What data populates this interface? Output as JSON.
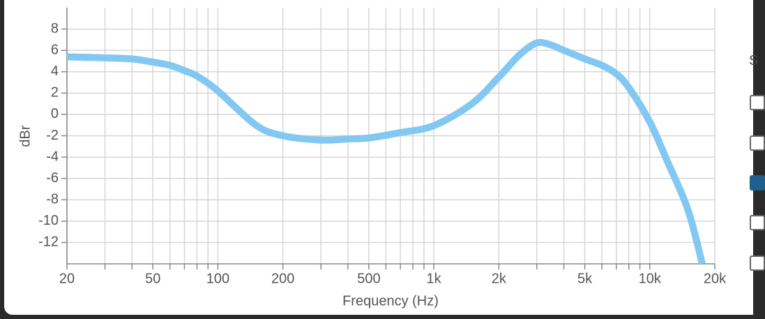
{
  "chart_data": {
    "type": "line",
    "x_label": "Frequency (Hz)",
    "y_label": "dBr",
    "x": [
      20,
      30,
      40,
      50,
      60,
      70,
      80,
      100,
      150,
      200,
      300,
      400,
      500,
      700,
      1000,
      1500,
      2000,
      2500,
      3000,
      3500,
      4000,
      5000,
      6000,
      7000,
      8000,
      10000,
      12000,
      15000,
      17500
    ],
    "series": [
      {
        "color": "#82c8f2",
        "values": [
          5.4,
          5.3,
          5.2,
          4.9,
          4.6,
          4.1,
          3.6,
          2.2,
          -1.0,
          -2.0,
          -2.4,
          -2.3,
          -2.2,
          -1.7,
          -1.05,
          1.0,
          3.5,
          5.6,
          6.7,
          6.5,
          6.0,
          5.2,
          4.6,
          3.8,
          2.5,
          -0.7,
          -4.3,
          -8.9,
          -14
        ]
      }
    ],
    "xscale": "log",
    "xlim": [
      20,
      20000
    ],
    "xticks": [
      20,
      50,
      100,
      200,
      500,
      {
        "value": 1000,
        "label": "1k"
      },
      {
        "value": 2000,
        "label": "2k"
      },
      {
        "value": 5000,
        "label": "5k"
      },
      {
        "value": 10000,
        "label": "10k"
      },
      {
        "value": 20000,
        "label": "20k"
      }
    ],
    "minor_xticks": [
      30,
      40,
      60,
      70,
      80,
      90,
      300,
      400,
      600,
      700,
      800,
      900,
      3000,
      4000,
      6000,
      7000,
      8000,
      9000
    ],
    "ylim": [
      -14,
      10
    ],
    "yticks": [
      -12,
      -10,
      -8,
      -6,
      -4,
      -2,
      0,
      2,
      4,
      6,
      8
    ],
    "grid": true
  },
  "side_panel": {
    "label": "S"
  }
}
